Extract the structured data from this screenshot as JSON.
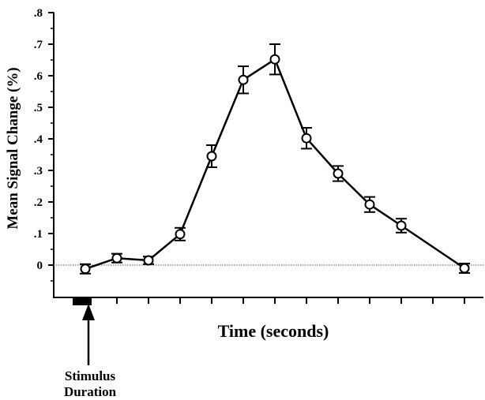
{
  "chart_data": {
    "type": "line",
    "xlabel": "Time (seconds)",
    "ylabel": "Mean Signal Change (%)",
    "ylim": [
      -0.1,
      0.8
    ],
    "yticks": [
      {
        "value": 0.8,
        "label": ".8"
      },
      {
        "value": 0.7,
        "label": ".7"
      },
      {
        "value": 0.6,
        "label": ".6"
      },
      {
        "value": 0.5,
        "label": ".5"
      },
      {
        "value": 0.4,
        "label": ".4"
      },
      {
        "value": 0.3,
        "label": ".3"
      },
      {
        "value": 0.2,
        "label": ".2"
      },
      {
        "value": 0.1,
        "label": ".1"
      },
      {
        "value": 0,
        "label": "0"
      }
    ],
    "x": [
      1,
      2,
      3,
      4,
      5,
      6,
      7,
      8,
      9,
      10,
      11,
      12,
      13
    ],
    "xlim": [
      0,
      13.6
    ],
    "xtick_positions": [
      1,
      2,
      3,
      4,
      5,
      6,
      7,
      8,
      9,
      10,
      11,
      12,
      13
    ],
    "grid": false,
    "reference_line": {
      "y": 0,
      "style": "dotted"
    },
    "series": [
      {
        "values": [
          -0.012,
          0.022,
          0.015,
          0.098,
          0.345,
          0.587,
          0.652,
          0.402,
          0.29,
          0.192,
          0.125,
          -0.01
        ],
        "x": [
          1,
          2,
          3,
          4,
          5,
          6,
          7,
          8,
          9,
          10,
          11,
          13
        ],
        "error": [
          0.015,
          0.014,
          0.012,
          0.02,
          0.035,
          0.043,
          0.048,
          0.033,
          0.024,
          0.024,
          0.022,
          0.015
        ]
      }
    ],
    "annotation": {
      "text_line1": "Stimulus",
      "text_line2": "Duration",
      "bar_start": 0.6,
      "bar_end": 1.2
    }
  }
}
